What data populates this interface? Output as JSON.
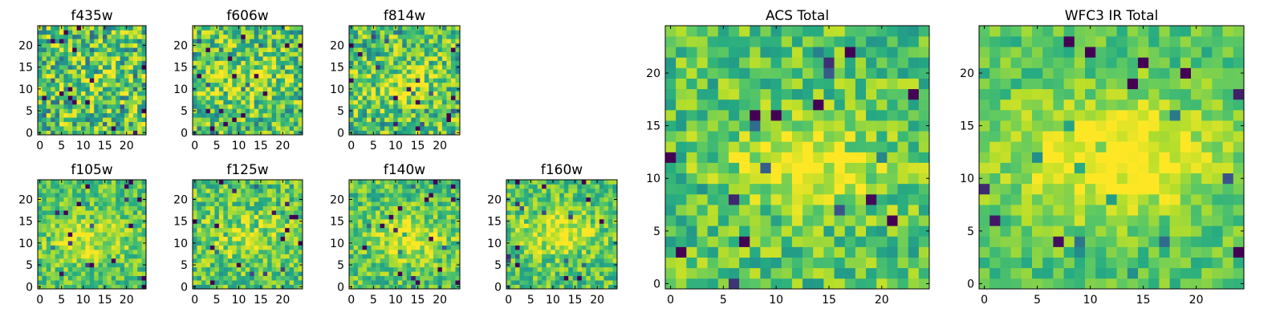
{
  "figure": {
    "colormap": [
      "#440154",
      "#3b528b",
      "#21918c",
      "#27ad81",
      "#5ec962",
      "#b5de2b",
      "#fde725"
    ]
  },
  "chart_data": [
    {
      "type": "heatmap",
      "title": "f435w",
      "grid_size": 25,
      "xticks": [
        0,
        5,
        10,
        15,
        20
      ],
      "yticks": [
        0,
        5,
        10,
        15,
        20
      ],
      "xlim": [
        0,
        25
      ],
      "ylim": [
        0,
        25
      ],
      "grid": false,
      "seed": 11,
      "source_sigma": 3.2,
      "source_amp": 0.12,
      "noise": 0.5,
      "center": [
        12.5,
        12.0
      ]
    },
    {
      "type": "heatmap",
      "title": "f606w",
      "grid_size": 25,
      "xticks": [
        0,
        5,
        10,
        15,
        20
      ],
      "yticks": [
        0,
        5,
        10,
        15,
        20
      ],
      "xlim": [
        0,
        25
      ],
      "ylim": [
        0,
        25
      ],
      "grid": false,
      "seed": 23,
      "source_sigma": 3.0,
      "source_amp": 0.3,
      "noise": 0.45,
      "center": [
        12.0,
        12.0
      ]
    },
    {
      "type": "heatmap",
      "title": "f814w",
      "grid_size": 25,
      "xticks": [
        0,
        5,
        10,
        15,
        20
      ],
      "yticks": [
        0,
        5,
        10,
        15,
        20
      ],
      "xlim": [
        0,
        25
      ],
      "ylim": [
        0,
        25
      ],
      "grid": false,
      "seed": 37,
      "source_sigma": 3.0,
      "source_amp": 0.32,
      "noise": 0.45,
      "center": [
        12.5,
        12.0
      ]
    },
    {
      "type": "heatmap",
      "title": "f105w",
      "grid_size": 25,
      "xticks": [
        0,
        5,
        10,
        15,
        20
      ],
      "yticks": [
        0,
        5,
        10,
        15,
        20
      ],
      "xlim": [
        0,
        25
      ],
      "ylim": [
        0,
        25
      ],
      "grid": false,
      "seed": 41,
      "source_sigma": 4.0,
      "source_amp": 0.28,
      "noise": 0.3,
      "center": [
        11.0,
        11.5
      ]
    },
    {
      "type": "heatmap",
      "title": "f125w",
      "grid_size": 25,
      "xticks": [
        0,
        5,
        10,
        15,
        20
      ],
      "yticks": [
        0,
        5,
        10,
        15,
        20
      ],
      "xlim": [
        0,
        25
      ],
      "ylim": [
        0,
        25
      ],
      "grid": false,
      "seed": 53,
      "source_sigma": 4.0,
      "source_amp": 0.22,
      "noise": 0.35,
      "center": [
        12.0,
        12.0
      ]
    },
    {
      "type": "heatmap",
      "title": "f140w",
      "grid_size": 25,
      "xticks": [
        0,
        5,
        10,
        15,
        20
      ],
      "yticks": [
        0,
        5,
        10,
        15,
        20
      ],
      "xlim": [
        0,
        25
      ],
      "ylim": [
        0,
        25
      ],
      "grid": false,
      "seed": 67,
      "source_sigma": 3.5,
      "source_amp": 0.35,
      "noise": 0.32,
      "center": [
        13.5,
        11.5
      ]
    },
    {
      "type": "heatmap",
      "title": "f160w",
      "grid_size": 25,
      "xticks": [
        0,
        5,
        10,
        15,
        20
      ],
      "yticks": [
        0,
        5,
        10,
        15,
        20
      ],
      "xlim": [
        0,
        25
      ],
      "ylim": [
        0,
        25
      ],
      "grid": false,
      "seed": 79,
      "source_sigma": 3.5,
      "source_amp": 0.35,
      "noise": 0.32,
      "center": [
        12.0,
        13.0
      ]
    },
    {
      "type": "heatmap",
      "title": "ACS Total",
      "grid_size": 25,
      "xticks": [
        0,
        5,
        10,
        15,
        20
      ],
      "yticks": [
        0,
        5,
        10,
        15,
        20
      ],
      "xlim": [
        0,
        25
      ],
      "ylim": [
        0,
        25
      ],
      "grid": false,
      "seed": 97,
      "source_sigma": 3.0,
      "source_amp": 0.4,
      "noise": 0.32,
      "center": [
        13.5,
        12.0
      ]
    },
    {
      "type": "heatmap",
      "title": "WFC3 IR Total",
      "grid_size": 25,
      "xticks": [
        0,
        5,
        10,
        15,
        20
      ],
      "yticks": [
        0,
        5,
        10,
        15,
        20
      ],
      "xlim": [
        0,
        25
      ],
      "ylim": [
        0,
        25
      ],
      "grid": false,
      "seed": 113,
      "source_sigma": 4.0,
      "source_amp": 0.45,
      "noise": 0.22,
      "center": [
        12.5,
        12.5
      ]
    }
  ]
}
